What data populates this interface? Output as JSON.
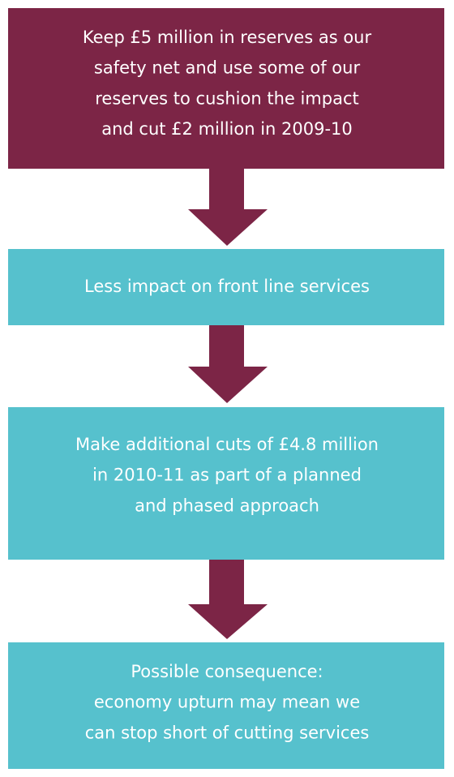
{
  "nodes": [
    {
      "lines": [
        "Keep £5 million in reserves as our",
        "safety net and use some of our",
        "reserves to cushion the impact",
        "and cut £2 million in 2009-10"
      ]
    },
    {
      "lines": [
        "Less impact on front line services"
      ]
    },
    {
      "lines": [
        "Make additional cuts of £4.8 million",
        "in 2010-11 as part of a planned",
        "and phased approach"
      ]
    },
    {
      "lines": [
        "Possible consequence:",
        "economy upturn may mean we",
        "can stop short of cutting services"
      ]
    }
  ]
}
